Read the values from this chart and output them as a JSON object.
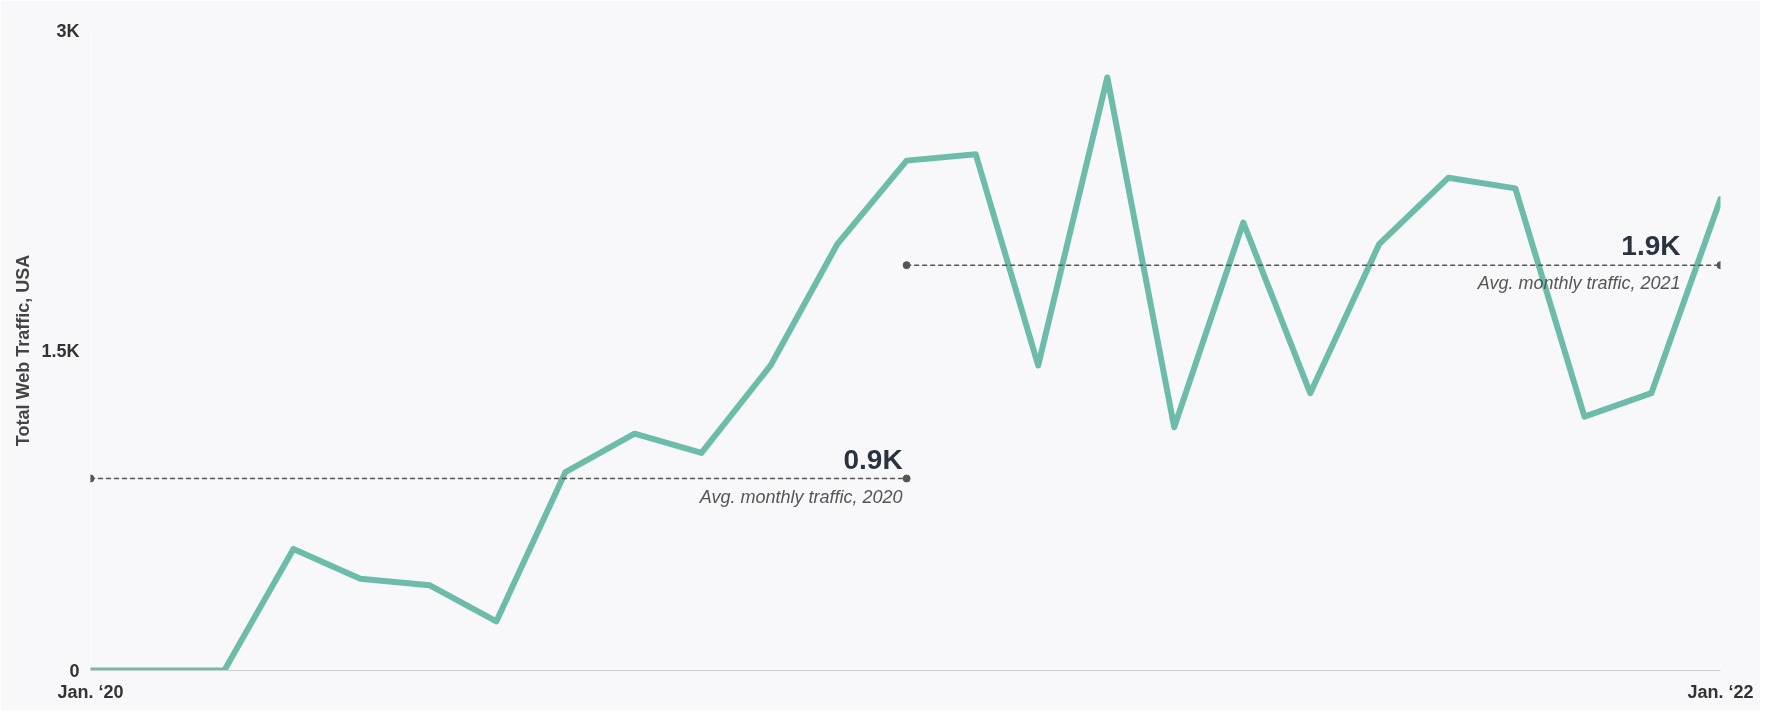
{
  "chart_data": {
    "type": "line",
    "ylabel": "Total Web Traffic, USA",
    "xlim": [
      "2020-01",
      "2022-01"
    ],
    "xticks": [
      {
        "value": "2020-01",
        "label": "Jan. ‘20"
      },
      {
        "value": "2022-01",
        "label": "Jan. ‘22"
      }
    ],
    "ylim": [
      0,
      3000
    ],
    "yticks": [
      0,
      {
        "value": 1500,
        "label": "1.5K"
      },
      {
        "value": 3000,
        "label": "3K"
      }
    ],
    "grid": false,
    "marker": "none",
    "line_style": "solid",
    "series": [
      {
        "color": "#6dbcaa",
        "x": [
          "2020-01",
          "2020-02",
          "2020-03",
          "2020-04",
          "2020-05",
          "2020-06",
          "2020-07",
          "2020-08",
          "2020-09",
          "2020-10",
          "2020-11",
          "2020-12",
          "2021-01",
          "2021-02",
          "2021-03",
          "2021-04",
          "2021-05",
          "2021-06",
          "2021-07",
          "2021-08",
          "2021-09",
          "2021-10",
          "2021-11",
          "2021-12",
          "2022-01"
        ],
        "values": [
          0,
          0,
          0,
          570,
          430,
          400,
          230,
          930,
          1110,
          1020,
          1430,
          2000,
          2390,
          2420,
          1430,
          2780,
          1140,
          2100,
          1300,
          2000,
          2310,
          2260,
          1190,
          1300,
          2210
        ]
      },
      {
        "type": "line",
        "color": "#555555",
        "line_style": "dashed",
        "marker": "circle",
        "x": [
          "2020-01",
          "2021-01"
        ],
        "values": [
          900,
          900
        ]
      },
      {
        "type": "line",
        "color": "#555555",
        "line_style": "dashed",
        "marker": "circle",
        "x": [
          "2021-01",
          "2022-01"
        ],
        "values": [
          1900,
          1900
        ]
      }
    ],
    "annotations": [
      {
        "text": "0.9K",
        "x": "2021-01",
        "y": 900
      },
      {
        "text": "Avg. monthly traffic, 2020",
        "x": "2021-01",
        "y": 900
      },
      {
        "text": "1.9K",
        "x": "2022-01",
        "y": 1900
      },
      {
        "text": "Avg. monthly traffic, 2021",
        "x": "2022-01",
        "y": 1900
      }
    ]
  }
}
